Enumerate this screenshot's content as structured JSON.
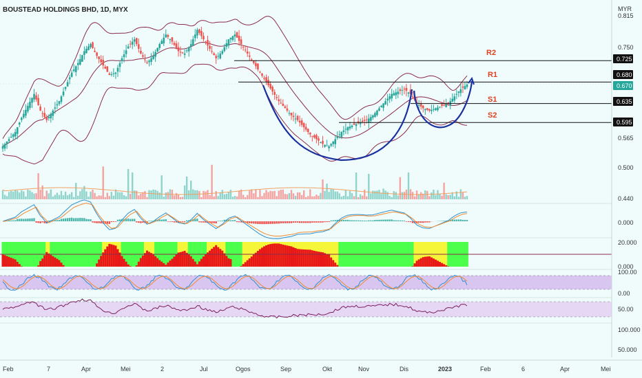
{
  "header": {
    "title": "BOUSTEAD HOLDINGS BHD, 1D, MYX"
  },
  "colors": {
    "background": "#f0fcfc",
    "up_candle": "#26a69a",
    "down_candle": "#ef5350",
    "bollinger": "#8b2a4a",
    "cup_curve": "#1a2fa0",
    "level_line": "#111111",
    "level_label": "#e04020",
    "volume_ma": "#f0a060",
    "macd_line": "#2d8fd0",
    "signal_line": "#f08a30",
    "stoch_fill": "#d9c6f0",
    "rsi_fill": "#e6d8f5"
  },
  "chart_data": {
    "type": "candlestick",
    "symbol": "BOUSTEAD HOLDINGS BHD",
    "interval": "1D",
    "exchange": "MYX",
    "currency": "MYR",
    "x_tick_labels": [
      "Feb",
      "7",
      "Apr",
      "Mei",
      "2",
      "Jul",
      "Ogos",
      "Sep",
      "Okt",
      "Nov",
      "Dis",
      "2023",
      "Feb",
      "6",
      "Apr",
      "Mei"
    ],
    "price_axis": {
      "unit_label": "MYR",
      "ticks": [
        "0.815",
        "0.750",
        "0.565",
        "0.500",
        "0.440"
      ],
      "ylim": [
        0.42,
        0.83
      ]
    },
    "price_tags": [
      {
        "value": "0.725",
        "style": "dark"
      },
      {
        "value": "0.680",
        "style": "dark"
      },
      {
        "value": "0.670",
        "style": "green"
      },
      {
        "value": "0.635",
        "style": "dark"
      },
      {
        "value": "0.595",
        "style": "dark"
      }
    ],
    "levels": [
      {
        "name": "R2",
        "value": 0.725
      },
      {
        "name": "R1",
        "value": 0.68
      },
      {
        "name": "S1",
        "value": 0.635
      },
      {
        "name": "S2",
        "value": 0.595
      }
    ],
    "indicators": {
      "macd_ticks": [
        "0.000"
      ],
      "dmi_ticks": [
        "20.000",
        "0.000"
      ],
      "stoch_ticks": [
        "100.00",
        "0.00"
      ],
      "rsi_ticks": [
        "50.00",
        "100.000",
        "50.000"
      ]
    },
    "price_series": {
      "close_anchors": [
        0.545,
        0.56,
        0.575,
        0.605,
        0.63,
        0.655,
        0.62,
        0.6,
        0.62,
        0.64,
        0.67,
        0.7,
        0.72,
        0.745,
        0.76,
        0.735,
        0.715,
        0.695,
        0.7,
        0.73,
        0.755,
        0.77,
        0.74,
        0.72,
        0.735,
        0.76,
        0.78,
        0.765,
        0.745,
        0.74,
        0.76,
        0.79,
        0.77,
        0.75,
        0.73,
        0.745,
        0.77,
        0.78,
        0.76,
        0.74,
        0.72,
        0.7,
        0.68,
        0.66,
        0.64,
        0.625,
        0.61,
        0.6,
        0.585,
        0.57,
        0.56,
        0.55,
        0.545,
        0.56,
        0.575,
        0.585,
        0.59,
        0.595,
        0.6,
        0.61,
        0.625,
        0.64,
        0.655,
        0.66,
        0.665,
        0.655,
        0.635,
        0.625,
        0.62,
        0.625,
        0.63,
        0.635,
        0.65,
        0.665,
        0.675
      ],
      "points_per_anchor": 3
    }
  }
}
